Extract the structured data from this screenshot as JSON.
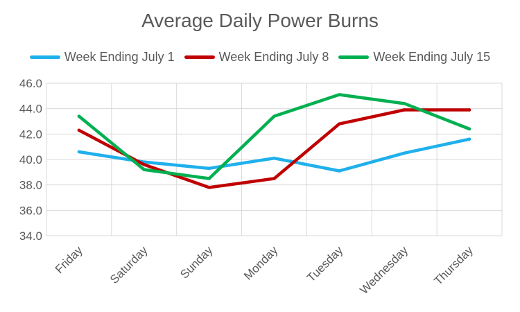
{
  "chart_data": {
    "type": "line",
    "title": "Average Daily Power Burns",
    "xlabel": "",
    "ylabel": "",
    "categories": [
      "Friday",
      "Saturday",
      "Sunday",
      "Monday",
      "Tuesday",
      "Wednesday",
      "Thursday"
    ],
    "ylim": [
      34.0,
      46.0
    ],
    "yticks": [
      "34.0",
      "36.0",
      "38.0",
      "40.0",
      "42.0",
      "44.0",
      "46.0"
    ],
    "grid": true,
    "legend_position": "top",
    "series": [
      {
        "name": "Week Ending July 1",
        "color": "#1FB0EC",
        "values": [
          40.6,
          39.8,
          39.3,
          40.1,
          39.1,
          40.5,
          41.6
        ]
      },
      {
        "name": "Week Ending July 8",
        "color": "#C00000",
        "values": [
          42.3,
          39.6,
          37.8,
          38.5,
          42.8,
          43.9,
          43.9
        ]
      },
      {
        "name": "Week Ending July 15",
        "color": "#00B050",
        "values": [
          43.4,
          39.2,
          38.5,
          43.4,
          45.1,
          44.4,
          42.4
        ]
      }
    ]
  }
}
